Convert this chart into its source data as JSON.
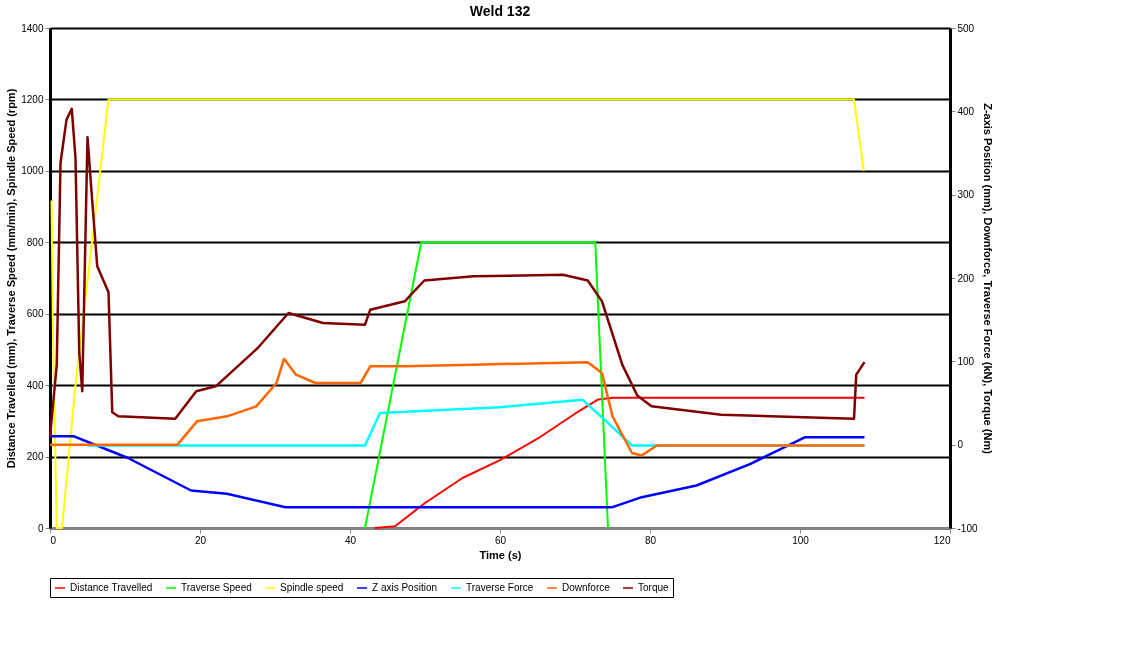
{
  "chart_data": {
    "type": "line",
    "title": "Weld 132",
    "xlabel": "Time (s)",
    "ylabel": "Distance Travelled (mm), Traverse Speed (mm/min), Spindle Speed (rpm)",
    "y2label": "Z-axis Position (mm), Downforce, Traverse Force (kN), Torque (Nm)",
    "xlim": [
      0,
      120
    ],
    "xticks": [
      0,
      20,
      40,
      60,
      80,
      100,
      120
    ],
    "ylim": [
      0,
      1400
    ],
    "yticks": [
      0,
      200,
      400,
      600,
      800,
      1000,
      1200,
      1400
    ],
    "y2lim": [
      -100,
      500
    ],
    "y2ticks": [
      -100,
      0,
      100,
      200,
      300,
      400,
      500
    ],
    "grid": "y",
    "legend": "bottom",
    "marker": "none",
    "line_style": "solid",
    "series": [
      {
        "name": "Distance Travelled",
        "color": "#ff0000",
        "x": [
          43.3,
          46,
          50,
          55,
          60,
          65,
          70,
          73.1,
          75,
          108.6
        ],
        "values": [
          0,
          5,
          70,
          140,
          190,
          250,
          320,
          360,
          365,
          365
        ]
      },
      {
        "name": "Traverse Speed",
        "color": "#00ff00",
        "x": [
          42,
          49.5,
          72.7,
          74.4
        ],
        "values": [
          0,
          800,
          800,
          0
        ]
      },
      {
        "name": "Spindle speed",
        "color": "#ffff00",
        "x": [
          0.2,
          0.4,
          0.9,
          1.6,
          3.4,
          7.8,
          107.2,
          108.5
        ],
        "values": [
          917,
          539,
          0,
          0,
          401,
          1200,
          1200,
          1000
        ]
      },
      {
        "name": "Z axis Position",
        "color": "#0000ff",
        "axis": "y2",
        "x": [
          0,
          3.2,
          10.4,
          18.8,
          23.6,
          31.4,
          67,
          75,
          78.9,
          86.2,
          93.4,
          100.7,
          108.6
        ],
        "values": [
          10,
          10,
          -16,
          -55,
          -59,
          -75,
          -75,
          -75,
          -63,
          -49,
          -23,
          9,
          9
        ]
      },
      {
        "name": "Traverse Force",
        "color": "#00ffff",
        "axis": "y2",
        "x": [
          5,
          42,
          44,
          60,
          71,
          75,
          77.6,
          108.6
        ],
        "values": [
          -1,
          -1,
          38,
          45,
          54,
          21,
          -1,
          -1
        ]
      },
      {
        "name": "Downforce",
        "color": "#ff6600",
        "axis": "y2",
        "x": [
          0,
          17,
          19.6,
          23.6,
          27.5,
          30.2,
          31.2,
          32.8,
          35.4,
          41.4,
          42.7,
          47.3,
          56.5,
          71.7,
          73.6,
          75,
          77.6,
          78.9,
          80.9,
          108.6
        ],
        "values": [
          0,
          0,
          28,
          34,
          46,
          74,
          103,
          84,
          74,
          74,
          94,
          94,
          96,
          99,
          86,
          34,
          -10,
          -13,
          -1,
          -1
        ]
      },
      {
        "name": "Torque",
        "color": "#800000",
        "axis": "y2",
        "x": [
          0,
          0.9,
          1.4,
          2.2,
          2.9,
          3.4,
          3.9,
          4.3,
          5.0,
          5.5,
          6.3,
          7.8,
          8.3,
          9.1,
          16.7,
          19.5,
          22.1,
          27.7,
          31.8,
          36.4,
          42,
          42.7,
          47.3,
          49.9,
          56.5,
          68.4,
          71.7,
          73.6,
          76.3,
          78.3,
          80.2,
          89.5,
          107.2,
          107.5,
          108.6
        ],
        "values": [
          9,
          96,
          338,
          390,
          403,
          344,
          111,
          64,
          369,
          308,
          214,
          183,
          39,
          34,
          31,
          64,
          70,
          116,
          158,
          146,
          144,
          162,
          172,
          197,
          202,
          204,
          197,
          172,
          96,
          59,
          46,
          36,
          31,
          84,
          99
        ]
      }
    ]
  }
}
